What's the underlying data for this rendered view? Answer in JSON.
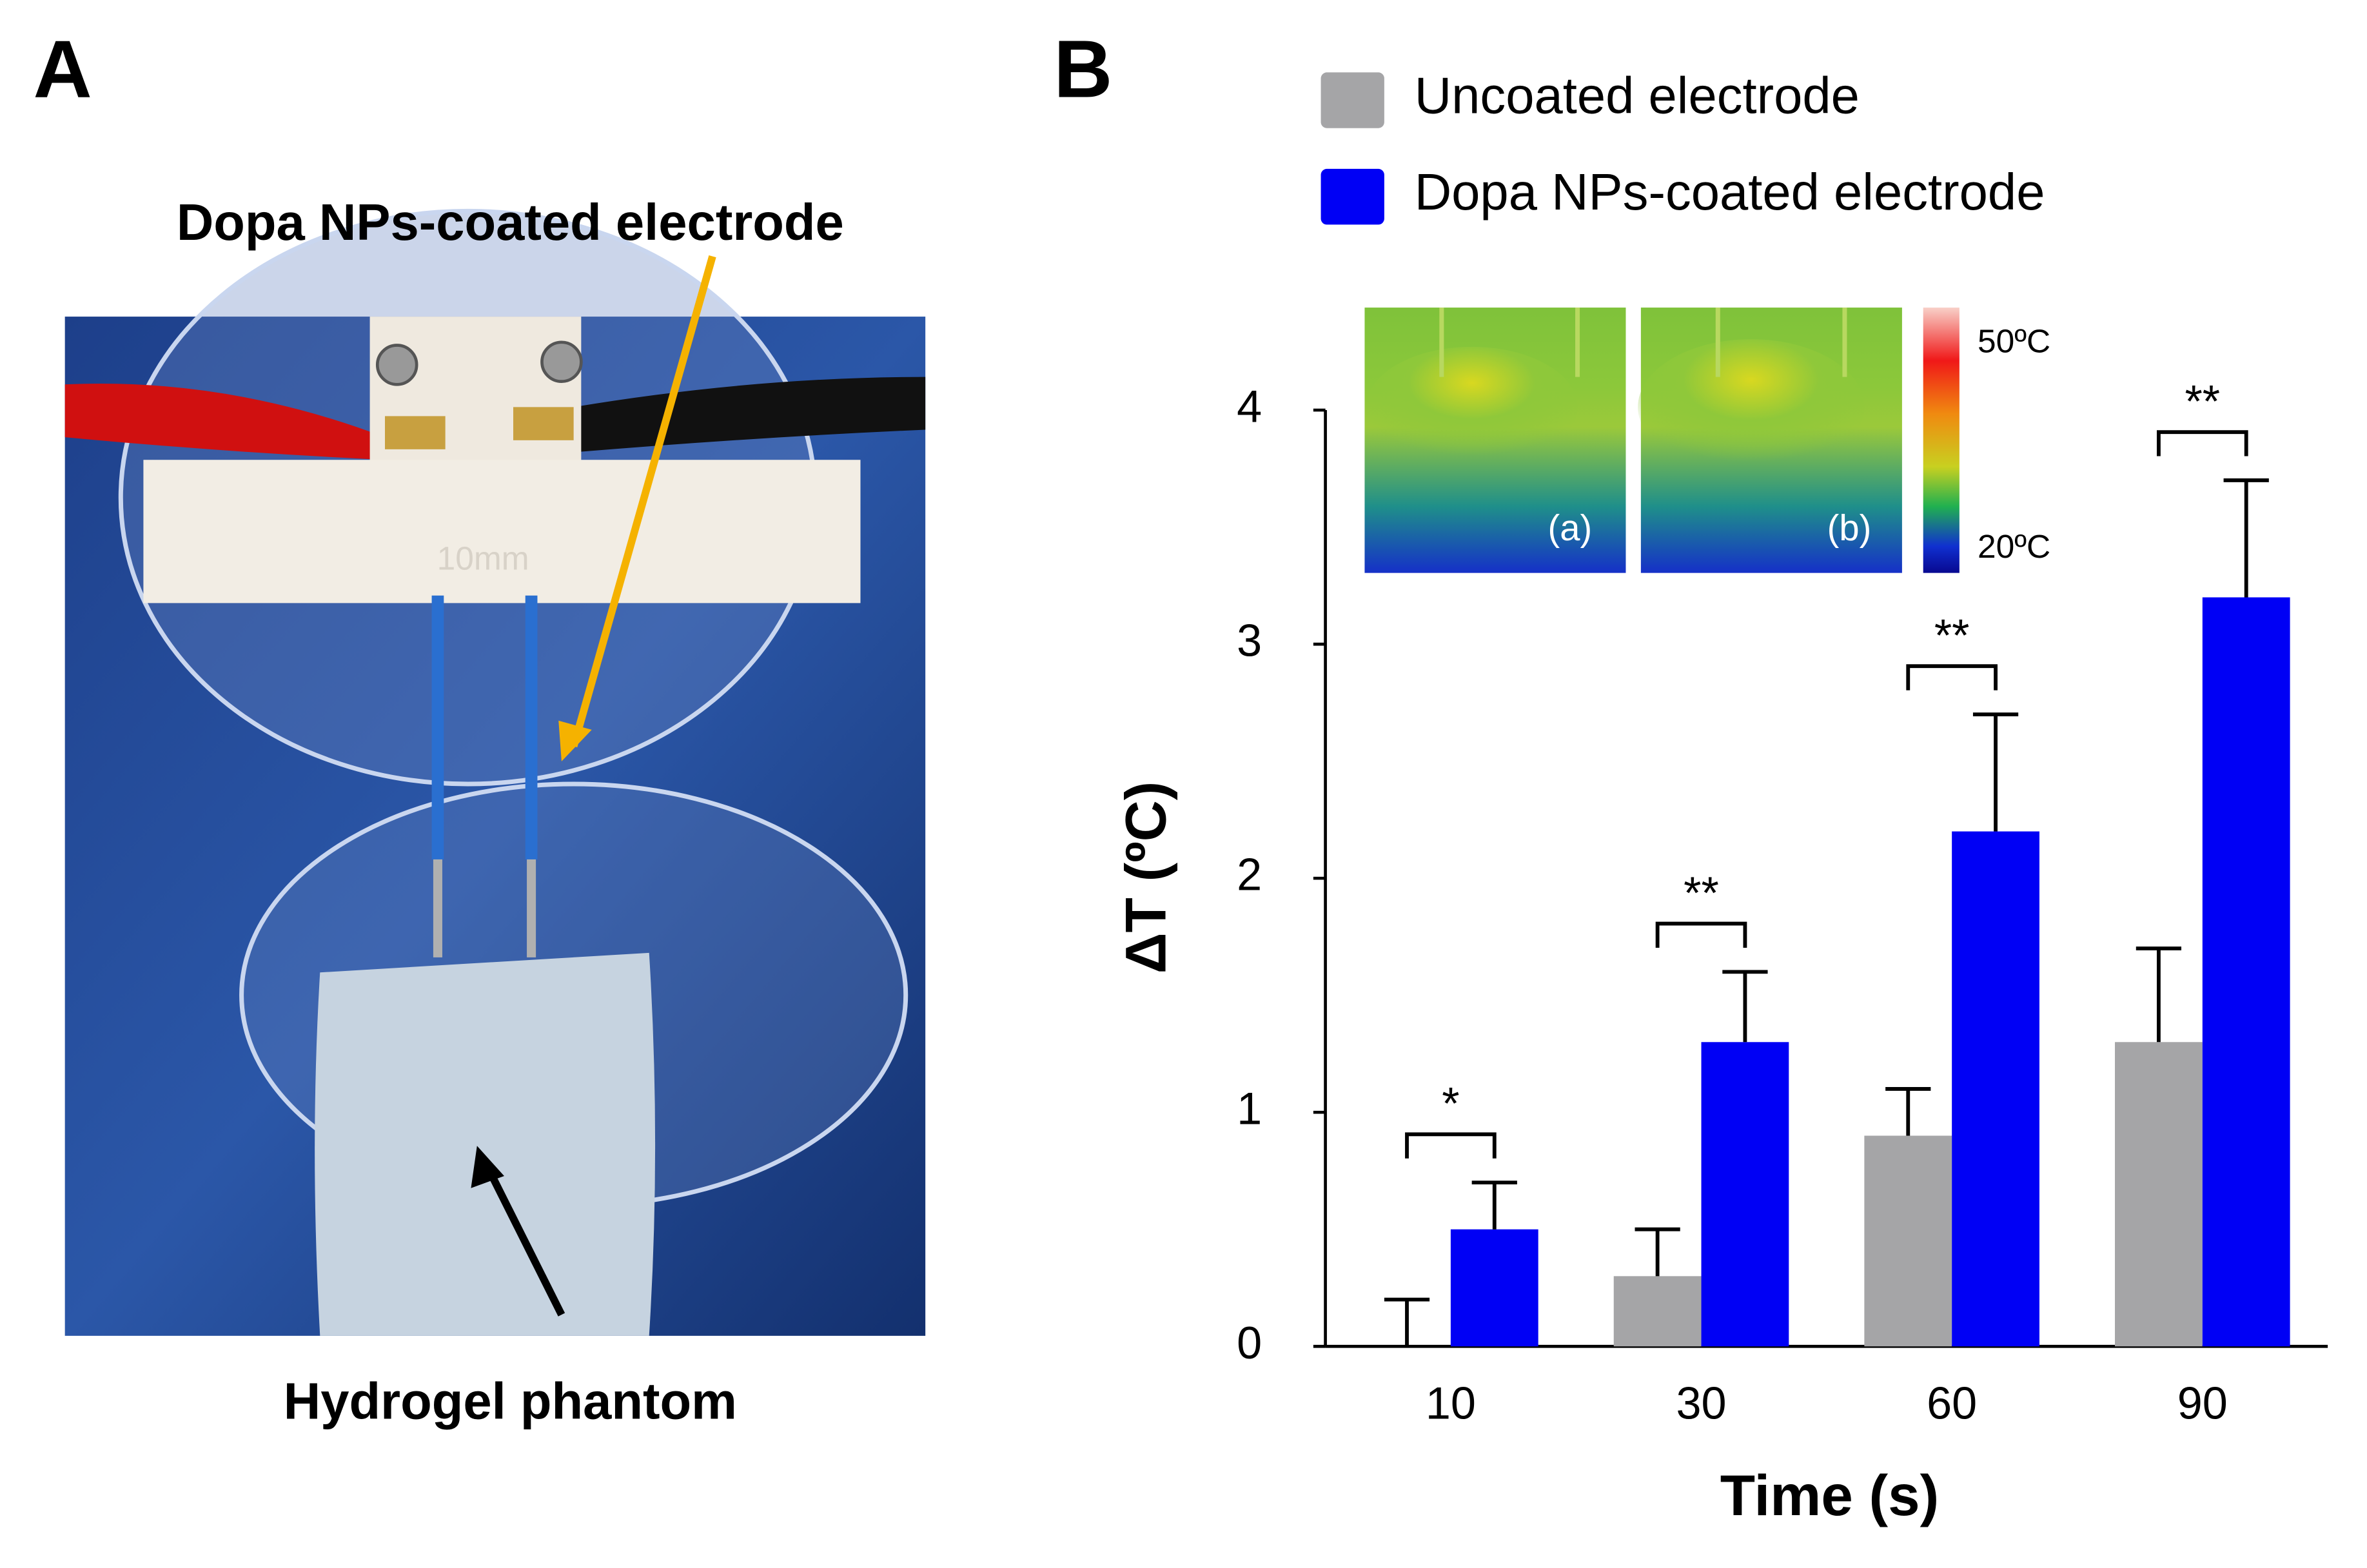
{
  "panel_labels": [
    "A",
    "B"
  ],
  "photo": {
    "top_label": "Dopa NPs-coated electrode",
    "bottom_label": "Hydrogel phantom",
    "holder_text": "10mm"
  },
  "inset": {
    "labels": [
      "(a)",
      "(b)"
    ],
    "scale_max": "50ºC",
    "scale_min": "20ºC"
  },
  "chart_data": {
    "type": "bar",
    "x_label": "Time (s)",
    "y_label": "ΔT (ºC)",
    "categories": [
      "10",
      "30",
      "60",
      "90"
    ],
    "series": [
      {
        "name": "Uncoated electrode",
        "color": "#a5a5a7",
        "values": [
          0,
          0.3,
          0.9,
          1.3
        ],
        "errors": [
          0.2,
          0.2,
          0.2,
          0.4
        ]
      },
      {
        "name": "Dopa NPs-coated electrode",
        "color": "#0000f5",
        "values": [
          0.5,
          1.3,
          2.2,
          3.2
        ],
        "errors": [
          0.2,
          0.3,
          0.5,
          0.5
        ]
      }
    ],
    "significance": [
      "*",
      "**",
      "**",
      "**"
    ],
    "ylim": [
      0,
      4
    ],
    "yticks": [
      0,
      1,
      2,
      3,
      4
    ],
    "grid": false,
    "legend": "top"
  }
}
